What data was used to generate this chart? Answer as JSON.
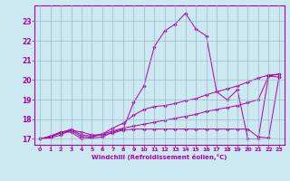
{
  "xlabel": "Windchill (Refroidissement éolien,°C)",
  "background_color": "#cce8f0",
  "line_color": "#aa00aa",
  "grid_color": "#99bbcc",
  "xlim": [
    -0.5,
    23.5
  ],
  "ylim": [
    16.7,
    23.8
  ],
  "xticks": [
    0,
    1,
    2,
    3,
    4,
    5,
    6,
    7,
    8,
    9,
    10,
    11,
    12,
    13,
    14,
    15,
    16,
    17,
    18,
    19,
    20,
    21,
    22,
    23
  ],
  "yticks": [
    17,
    18,
    19,
    20,
    21,
    22,
    23
  ],
  "line1_x": [
    0,
    1,
    2,
    3,
    4,
    5,
    6,
    7,
    8,
    9,
    10,
    11,
    12,
    13,
    14,
    15,
    16,
    17,
    18,
    19,
    20,
    21,
    22,
    23
  ],
  "line1_y": [
    17.0,
    17.1,
    17.35,
    17.35,
    17.0,
    17.05,
    17.1,
    17.35,
    17.5,
    18.85,
    19.7,
    21.7,
    22.5,
    22.85,
    23.4,
    22.6,
    22.25,
    19.4,
    19.0,
    19.5,
    17.0,
    17.0,
    20.2,
    20.15
  ],
  "line2_x": [
    0,
    1,
    2,
    3,
    4,
    5,
    6,
    7,
    8,
    9,
    10,
    11,
    12,
    13,
    14,
    15,
    16,
    17,
    18,
    19,
    20,
    21,
    22,
    23
  ],
  "line2_y": [
    17.0,
    17.15,
    17.35,
    17.45,
    17.1,
    17.1,
    17.25,
    17.55,
    17.8,
    18.2,
    18.5,
    18.65,
    18.7,
    18.8,
    18.95,
    19.05,
    19.25,
    19.4,
    19.55,
    19.7,
    19.9,
    20.1,
    20.25,
    20.3
  ],
  "line3_x": [
    0,
    1,
    2,
    3,
    4,
    5,
    6,
    7,
    8,
    9,
    10,
    11,
    12,
    13,
    14,
    15,
    16,
    17,
    18,
    19,
    20,
    21,
    22,
    23
  ],
  "line3_y": [
    17.0,
    17.05,
    17.2,
    17.45,
    17.35,
    17.2,
    17.2,
    17.3,
    17.45,
    17.5,
    17.5,
    17.5,
    17.5,
    17.5,
    17.5,
    17.5,
    17.5,
    17.5,
    17.5,
    17.5,
    17.5,
    17.1,
    17.05,
    20.15
  ],
  "line4_x": [
    0,
    1,
    2,
    3,
    4,
    5,
    6,
    7,
    8,
    9,
    10,
    11,
    12,
    13,
    14,
    15,
    16,
    17,
    18,
    19,
    20,
    21,
    22,
    23
  ],
  "line4_y": [
    17.0,
    17.1,
    17.3,
    17.5,
    17.2,
    17.15,
    17.25,
    17.4,
    17.55,
    17.65,
    17.75,
    17.85,
    17.95,
    18.05,
    18.15,
    18.25,
    18.4,
    18.5,
    18.6,
    18.7,
    18.85,
    19.0,
    20.2,
    20.3
  ]
}
